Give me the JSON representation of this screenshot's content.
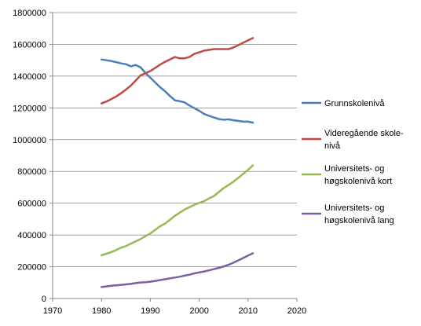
{
  "chart_data": {
    "type": "line",
    "title": "",
    "xlabel": "",
    "ylabel": "",
    "xlim": [
      1970,
      2020
    ],
    "ylim": [
      0,
      1800000
    ],
    "xticks": [
      "1970",
      "1980",
      "1990",
      "2000",
      "2010",
      "2020"
    ],
    "yticks": [
      "0",
      "200000",
      "400000",
      "600000",
      "800000",
      "1000000",
      "1200000",
      "1400000",
      "1600000",
      "1800000"
    ],
    "grid": "horizontal",
    "legend_position": "right",
    "x": [
      1980,
      1981,
      1982,
      1983,
      1984,
      1985,
      1986,
      1987,
      1988,
      1989,
      1990,
      1991,
      1992,
      1993,
      1994,
      1995,
      1996,
      1997,
      1998,
      1999,
      2000,
      2001,
      2002,
      2003,
      2004,
      2005,
      2006,
      2007,
      2008,
      2009,
      2010,
      2011
    ],
    "series": [
      {
        "name": "Grunnskolenivå",
        "color": "#4a7ebb",
        "values": [
          1505000,
          1500000,
          1495000,
          1488000,
          1480000,
          1475000,
          1462000,
          1470000,
          1455000,
          1420000,
          1390000,
          1360000,
          1330000,
          1305000,
          1275000,
          1248000,
          1242000,
          1235000,
          1215000,
          1198000,
          1182000,
          1162000,
          1150000,
          1140000,
          1130000,
          1125000,
          1128000,
          1122000,
          1118000,
          1113000,
          1113000,
          1107000
        ]
      },
      {
        "name": "Videregående skole-\nnivå",
        "color": "#be4b48",
        "values": [
          1228000,
          1240000,
          1255000,
          1272000,
          1292000,
          1315000,
          1340000,
          1372000,
          1405000,
          1418000,
          1432000,
          1452000,
          1472000,
          1490000,
          1505000,
          1520000,
          1512000,
          1512000,
          1520000,
          1540000,
          1550000,
          1560000,
          1565000,
          1570000,
          1570000,
          1570000,
          1570000,
          1580000,
          1595000,
          1610000,
          1625000,
          1640000
        ]
      },
      {
        "name": "Universitets- og\nhøgskolenivå kort",
        "color": "#98b954",
        "values": [
          272000,
          282000,
          292000,
          305000,
          320000,
          330000,
          345000,
          360000,
          375000,
          392000,
          410000,
          432000,
          455000,
          472000,
          495000,
          520000,
          540000,
          560000,
          575000,
          590000,
          602000,
          612000,
          630000,
          645000,
          670000,
          695000,
          715000,
          735000,
          760000,
          785000,
          810000,
          838000
        ]
      },
      {
        "name": "Universitets- og\nhøgskolenivå lang",
        "color": "#7d5fa0",
        "values": [
          72000,
          76000,
          80000,
          83000,
          86000,
          89000,
          92000,
          97000,
          101000,
          103000,
          106000,
          111000,
          116000,
          121000,
          127000,
          132000,
          137000,
          144000,
          150000,
          158000,
          164000,
          170000,
          177000,
          185000,
          193000,
          202000,
          212000,
          225000,
          240000,
          255000,
          270000,
          285000
        ]
      }
    ]
  }
}
